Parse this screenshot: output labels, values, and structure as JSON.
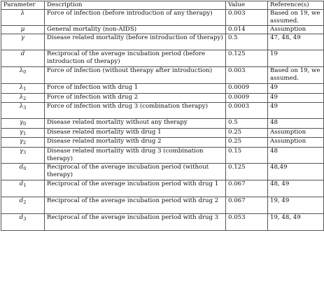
{
  "table": {
    "headers": [
      "Parameter",
      "Description",
      "Value",
      "Reference(s)"
    ],
    "rows": [
      {
        "sym": "λ",
        "sub": "",
        "desc": "Force of infection (before introduction of any therapy)",
        "value": "0.003",
        "ref": "Based on 19, we assumed.",
        "h": 2
      },
      {
        "sym": "μ",
        "sub": "",
        "desc": "General mortality (non-AIDS)",
        "value": "0.014",
        "ref": "Assumption",
        "h": 1
      },
      {
        "sym": "γ",
        "sub": "",
        "desc": "Disease related mortality (before introduction of therapy)",
        "value": "0.5",
        "ref": "47, 48, 49",
        "h": 2
      },
      {
        "sym": "d",
        "sub": "",
        "desc": "Reciprocal of the average incubation period (before introduction of therapy)",
        "value": "0.125",
        "ref": "19",
        "h": 3
      },
      {
        "sym": "λ",
        "sub": "0",
        "desc": "Force of infection (without therapy after introduction)",
        "value": "0.003",
        "ref": "Based on 19, we assumed.",
        "h": 3
      },
      {
        "sym": "λ",
        "sub": "1",
        "desc": "Force of infection with drug 1",
        "value": "0.0009",
        "ref": "49",
        "h": 1
      },
      {
        "sym": "λ",
        "sub": "2",
        "desc": "Force of infection with drug 2",
        "value": "0.0009",
        "ref": "49",
        "h": 1
      },
      {
        "sym": "λ",
        "sub": "3",
        "desc": "Force of infection with drug 3 (combination therapy)",
        "value": "0.0003",
        "ref": "49",
        "h": 2
      },
      {
        "sym": "γ",
        "sub": "0",
        "desc": "Disease related mortality without any therapy",
        "value": "0.5",
        "ref": "48",
        "h": 1
      },
      {
        "sym": "γ",
        "sub": "1",
        "desc": "Disease related mortality with drug 1",
        "value": "0.25",
        "ref": "Assumption",
        "h": 1
      },
      {
        "sym": "γ",
        "sub": "2",
        "desc": "Disease related mortality with drug 2",
        "value": "0.25",
        "ref": "Assumption",
        "h": 1
      },
      {
        "sym": "γ",
        "sub": "3",
        "desc": "Disease related mortality with drug 3 (combination therapy)",
        "value": "0.15",
        "ref": "48",
        "h": 2
      },
      {
        "sym": "d",
        "sub": "0",
        "desc": "Reciprocal of the average incubation period (without therapy)",
        "value": "0.125",
        "ref": "48,49",
        "h": 3
      },
      {
        "sym": "d",
        "sub": "1",
        "desc": "Reciprocal of the average incubation period with drug 1",
        "value": "0.067",
        "ref": "48, 49",
        "h": 3
      },
      {
        "sym": "d",
        "sub": "2",
        "desc": "Reciprocal of the average incubation period with drug 2",
        "value": "0.067",
        "ref": "19, 49",
        "h": 3
      },
      {
        "sym": "d",
        "sub": "3",
        "desc": "Reciprocal of the average incubation period with drug 3",
        "value": "0.053",
        "ref": "19, 48, 49",
        "h": 3
      }
    ]
  }
}
